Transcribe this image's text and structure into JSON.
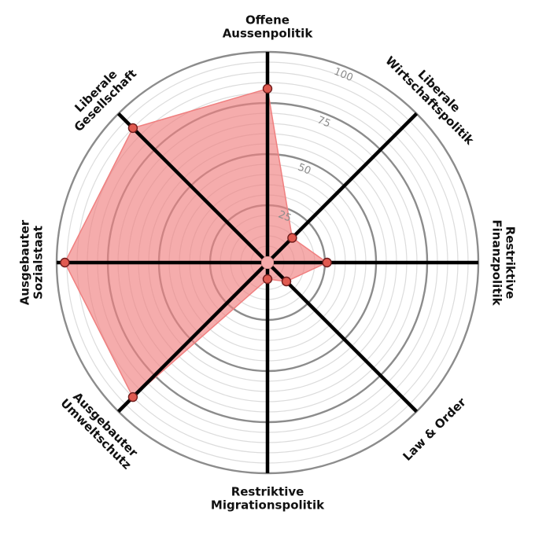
{
  "chart_data": {
    "type": "radar",
    "axes": [
      {
        "id": "offene-aussenpolitik",
        "lines": [
          "Offene",
          "Aussenpolitik"
        ]
      },
      {
        "id": "liberale-wirtschaftspolitik",
        "lines": [
          "Liberale",
          "Wirtschaftspolitik"
        ]
      },
      {
        "id": "restriktive-finanzpolitik",
        "lines": [
          "Restriktive",
          "Finanzpolitik"
        ]
      },
      {
        "id": "law-order",
        "lines": [
          "Law & Order"
        ]
      },
      {
        "id": "restriktive-migrationspolitik",
        "lines": [
          "Restriktive",
          "Migrationspolitik"
        ]
      },
      {
        "id": "ausgebauter-umweltschutz",
        "lines": [
          "Ausgebauter",
          "Umweltschutz"
        ]
      },
      {
        "id": "ausgebauter-sozialstaat",
        "lines": [
          "Ausgebauter",
          "Sozialstaat"
        ]
      },
      {
        "id": "liberale-gesellschaft",
        "lines": [
          "Liberale",
          "Gesellschaft"
        ]
      }
    ],
    "values": [
      82,
      14,
      26,
      10,
      5,
      90,
      96,
      90
    ],
    "rlim": [
      0,
      100
    ],
    "major_ticks": [
      25,
      50,
      75,
      100
    ],
    "tick_labels": [
      "25",
      "50",
      "75",
      "100"
    ],
    "minor_step": 5,
    "grid": true,
    "colors": {
      "fill": "#f08080",
      "fill_opacity": 0.65,
      "polygon_edge": "#f08080",
      "point_fill": "#e05a50",
      "point_edge": "#6e1c1c",
      "spoke": "#000000",
      "major_ring": "#8c8c8c",
      "minor_ring": "#dcdcdc",
      "tick_text": "#8c8c8c"
    }
  }
}
